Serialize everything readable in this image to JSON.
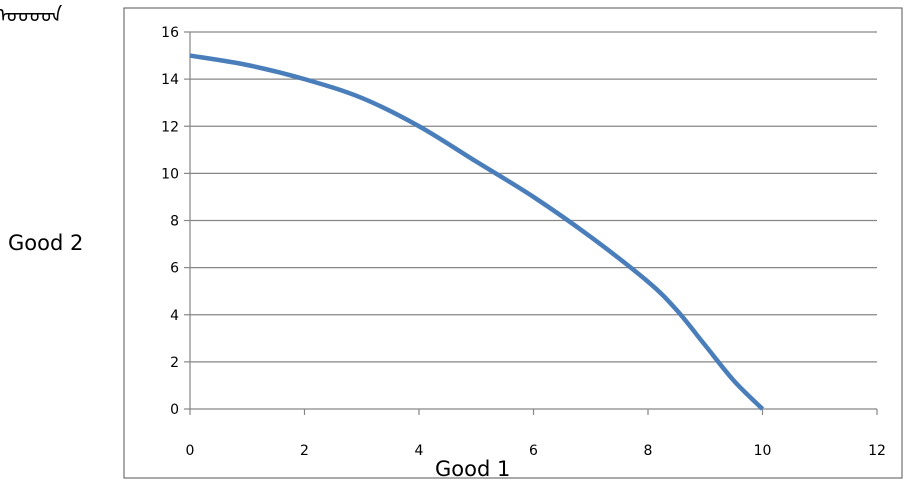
{
  "corner_text": "ᠣᠣᠤᠳ",
  "chart_data": {
    "type": "line",
    "xlabel": "Good 1",
    "ylabel": "Good 2",
    "xlim": [
      0,
      12
    ],
    "ylim": [
      0,
      16
    ],
    "xticks": [
      "0",
      "2",
      "4",
      "6",
      "8",
      "10",
      "12"
    ],
    "yticks": [
      "0",
      "2",
      "4",
      "6",
      "8",
      "10",
      "12",
      "14",
      "16"
    ],
    "grid": true,
    "legend": "none",
    "series": [
      {
        "color": "#4a7ebb",
        "x": [
          0,
          1,
          2,
          3,
          4,
          5,
          6,
          7,
          8,
          8.5,
          9,
          9.5,
          10
        ],
        "y": [
          15,
          14.6,
          14,
          13.2,
          12,
          10.5,
          9,
          7.3,
          5.4,
          4.2,
          2.7,
          1.2,
          0
        ]
      }
    ]
  }
}
